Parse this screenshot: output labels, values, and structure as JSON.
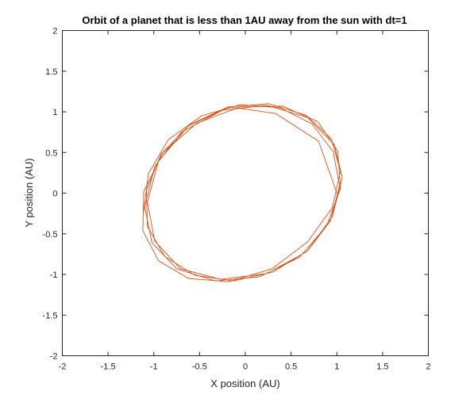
{
  "chart_data": {
    "type": "line",
    "title": "Orbit of a planet that is less than 1AU away from the sun with dt=1",
    "xlabel": "X position (AU)",
    "ylabel": "Y position (AU)",
    "xlim": [
      -2,
      2
    ],
    "ylim": [
      -2,
      2
    ],
    "xticks": [
      -2,
      -1.5,
      -1,
      -0.5,
      0,
      0.5,
      1,
      1.5,
      2
    ],
    "yticks": [
      -2,
      -1.5,
      -1,
      -0.5,
      0,
      0.5,
      1,
      1.5,
      2
    ],
    "xtick_labels": [
      "-2",
      "-1.5",
      "-1",
      "-0.5",
      "0",
      "0.5",
      "1",
      "1.5",
      "2"
    ],
    "ytick_labels": [
      "-2",
      "-1.5",
      "-1",
      "-0.5",
      "0",
      "0.5",
      "1",
      "1.5",
      "2"
    ],
    "grid": false,
    "line_color": "#D95319",
    "series": [
      {
        "x": [
          1.0,
          0.8,
          0.33,
          -0.17,
          -0.62,
          -0.95,
          -1.07,
          -0.99,
          -0.71,
          -0.27,
          0.23,
          0.67,
          0.95,
          1.06,
          0.97,
          0.68,
          0.24,
          -0.25,
          -0.7,
          -0.99,
          -1.1,
          -1.02,
          -0.75,
          -0.33,
          0.15,
          0.59,
          0.89,
          1.04,
          1.01,
          0.79,
          0.41,
          -0.06,
          -0.53,
          -0.9,
          -1.11,
          -1.12,
          -0.95,
          -0.62,
          -0.18,
          0.29,
          0.68,
          0.95,
          1.04,
          0.94,
          0.66,
          0.26,
          -0.19,
          -0.61,
          -0.92,
          -1.08,
          -1.07,
          -0.88,
          -0.55,
          -0.13,
          0.3,
          0.68,
          0.93,
          1.03,
          0.96,
          0.73,
          0.38,
          -0.05,
          -0.48,
          -0.84,
          -1.06,
          -1.11
        ],
        "y": [
          0.0,
          0.64,
          0.98,
          1.06,
          0.83,
          0.39,
          -0.11,
          -0.59,
          -0.93,
          -1.06,
          -0.99,
          -0.72,
          -0.29,
          0.19,
          0.6,
          0.93,
          1.08,
          1.02,
          0.75,
          0.33,
          -0.17,
          -0.61,
          -0.93,
          -1.08,
          -1.03,
          -0.79,
          -0.4,
          0.06,
          0.52,
          0.88,
          1.07,
          1.06,
          0.86,
          0.5,
          0.02,
          -0.46,
          -0.83,
          -1.05,
          -1.09,
          -0.93,
          -0.6,
          -0.18,
          0.27,
          0.67,
          0.96,
          1.1,
          1.06,
          0.84,
          0.48,
          0.04,
          -0.41,
          -0.78,
          -1.01,
          -1.08,
          -0.97,
          -0.71,
          -0.34,
          0.09,
          0.51,
          0.85,
          1.05,
          1.09,
          0.95,
          0.66,
          0.24,
          -0.22
        ]
      }
    ]
  }
}
